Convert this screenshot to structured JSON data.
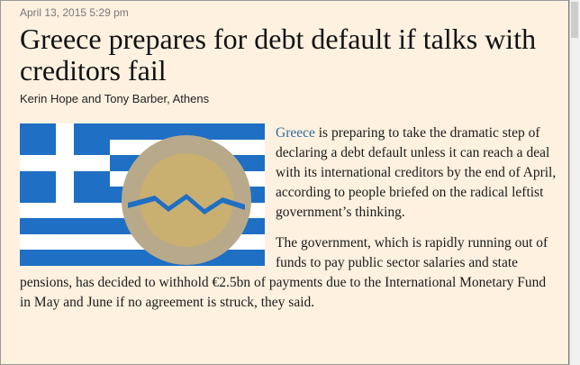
{
  "article": {
    "date": "April 13, 2015 5:29 pm",
    "title": "Greece prepares for debt default if talks with creditors fail",
    "byline": "Kerin Hope and Tony Barber, Athens",
    "paragraphs": [
      {
        "link": "Greece",
        "text": " is preparing to take the dramatic step of declaring a debt default unless it can reach a deal with its international creditors by the end of April, according to people briefed on the radical leftist government’s thinking."
      },
      {
        "text": "The government, which is rapidly running out of funds to pay public sector salaries and state pensions, has decided to withhold €2.5bn of payments due to the International Monetary Fund in May and June if no agreement is struck, they said."
      }
    ]
  }
}
